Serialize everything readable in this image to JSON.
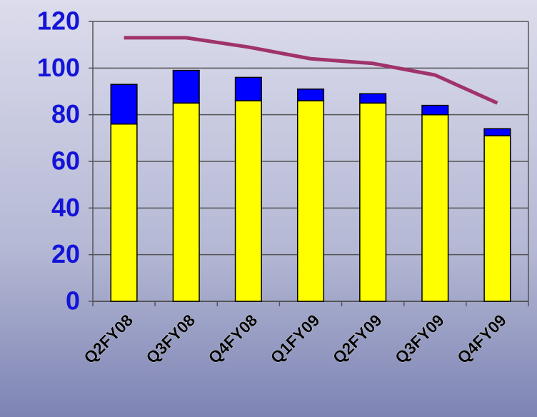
{
  "chart_data": {
    "type": "stacked_bar_line",
    "categories": [
      "Q2FY08",
      "Q3FY08",
      "Q4FY08",
      "Q1FY09",
      "Q2FY09",
      "Q3FY09",
      "Q4FY09"
    ],
    "series": [
      {
        "color": "#ffff00",
        "values": [
          76,
          85,
          86,
          86,
          85,
          80,
          71
        ]
      },
      {
        "color": "#0000ff",
        "values": [
          17,
          14,
          10,
          5,
          4,
          4,
          3
        ]
      },
      {
        "type": "line",
        "color": "#a0336a",
        "values": [
          113,
          113,
          109,
          104,
          102,
          97,
          85
        ]
      }
    ],
    "ylim": [
      0,
      120
    ],
    "yticks": [
      0,
      20,
      40,
      60,
      80,
      100,
      120
    ],
    "grid": true
  }
}
